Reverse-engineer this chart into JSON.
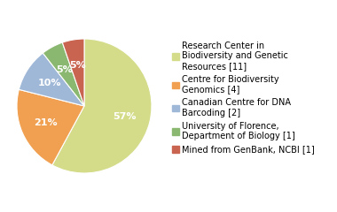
{
  "slices": [
    {
      "label": "Research Center in\nBiodiversity and Genetic\nResources [11]",
      "value": 11,
      "pct": "57%",
      "color": "#d4dc8a"
    },
    {
      "label": "Centre for Biodiversity\nGenomics [4]",
      "value": 4,
      "pct": "21%",
      "color": "#f0a050"
    },
    {
      "label": "Canadian Centre for DNA\nBarcoding [2]",
      "value": 2,
      "pct": "10%",
      "color": "#a0b8d8"
    },
    {
      "label": "University of Florence,\nDepartment of Biology [1]",
      "value": 1,
      "pct": "5%",
      "color": "#8ab870"
    },
    {
      "label": "Mined from GenBank, NCBI [1]",
      "value": 1,
      "pct": "5%",
      "color": "#c86450"
    }
  ],
  "pct_color": "white",
  "bg_color": "#ffffff",
  "legend_fontsize": 7.0,
  "pct_fontsize": 8.0
}
